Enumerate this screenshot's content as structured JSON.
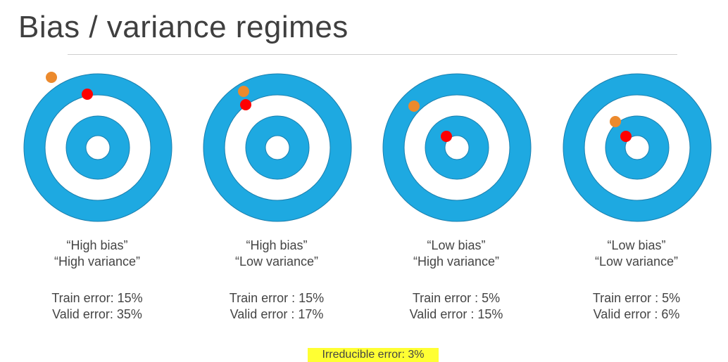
{
  "title": "Bias / variance regimes",
  "colors": {
    "ring_blue": "#1ea9e1",
    "ring_white": "#ffffff",
    "ring_stroke": "#1a7fae",
    "train_dot": "#ff0000",
    "valid_dot": "#ec8a2d",
    "highlight": "#ffff33"
  },
  "panels": [
    {
      "label_line1": "“High bias”",
      "label_line2": "“High variance”",
      "train_error": "Train error: 15%",
      "valid_error": "Valid error: 35%"
    },
    {
      "label_line1": "“High bias”",
      "label_line2": "“Low variance”",
      "train_error": "Train error : 15%",
      "valid_error": "Valid error : 17%"
    },
    {
      "label_line1": "“Low bias”",
      "label_line2": "“High variance”",
      "train_error": "Train error : 5%",
      "valid_error": "Valid error : 15%"
    },
    {
      "label_line1": "“Low bias”",
      "label_line2": "“Low variance”",
      "train_error": "Train error : 5%",
      "valid_error": "Valid error : 6%"
    }
  ],
  "irreducible_error": "Irreducible error: 3%"
}
